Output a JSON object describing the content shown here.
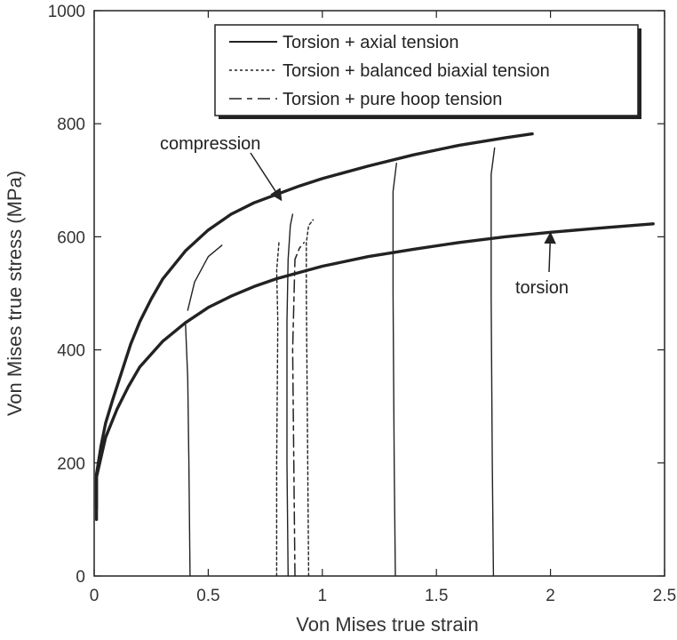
{
  "chart_data": {
    "type": "line",
    "title": "",
    "xlabel": "Von Mises true strain",
    "ylabel": "Von Mises true stress (MPa)",
    "xlim": [
      0,
      2.5
    ],
    "ylim": [
      0,
      1000
    ],
    "x_ticks": [
      0,
      0.5,
      1,
      1.5,
      2,
      2.5
    ],
    "x_tick_labels": [
      "0",
      "0.5",
      "1",
      "1.5",
      "2",
      "2.5"
    ],
    "y_ticks": [
      0,
      200,
      400,
      600,
      800,
      1000
    ],
    "y_tick_labels": [
      "0",
      "200",
      "400",
      "600",
      "800",
      "1000"
    ],
    "grid": false,
    "legend_position": "top-right",
    "legend": [
      {
        "label": "Torsion + axial tension",
        "style": "solid"
      },
      {
        "label": "Torsion + balanced biaxial tension",
        "style": "dotted"
      },
      {
        "label": "Torsion + pure hoop tension",
        "style": "dashed"
      }
    ],
    "annotations": [
      {
        "text": "compression",
        "x": 0.82,
        "y": 760,
        "arrow_to": {
          "x": 0.82,
          "y": 665
        }
      },
      {
        "text": "torsion",
        "x": 2.05,
        "y": 500,
        "arrow_to": {
          "x": 2.0,
          "y": 607
        }
      }
    ],
    "series": [
      {
        "kind": "main",
        "label_ref": "compression",
        "style": "thick",
        "points": [
          [
            0.01,
            120
          ],
          [
            0.01,
            180
          ],
          [
            0.03,
            230
          ],
          [
            0.05,
            270
          ],
          [
            0.08,
            310
          ],
          [
            0.12,
            360
          ],
          [
            0.16,
            410
          ],
          [
            0.2,
            450
          ],
          [
            0.25,
            490
          ],
          [
            0.3,
            525
          ],
          [
            0.4,
            575
          ],
          [
            0.5,
            612
          ],
          [
            0.6,
            640
          ],
          [
            0.7,
            660
          ],
          [
            0.8,
            675
          ],
          [
            0.9,
            690
          ],
          [
            1.0,
            703
          ],
          [
            1.2,
            725
          ],
          [
            1.4,
            745
          ],
          [
            1.6,
            762
          ],
          [
            1.8,
            775
          ],
          [
            1.92,
            782
          ]
        ]
      },
      {
        "kind": "main",
        "label_ref": "torsion",
        "style": "thick",
        "points": [
          [
            0.01,
            100
          ],
          [
            0.01,
            175
          ],
          [
            0.05,
            245
          ],
          [
            0.1,
            295
          ],
          [
            0.15,
            335
          ],
          [
            0.2,
            370
          ],
          [
            0.3,
            415
          ],
          [
            0.4,
            448
          ],
          [
            0.5,
            475
          ],
          [
            0.6,
            495
          ],
          [
            0.7,
            512
          ],
          [
            0.8,
            526
          ],
          [
            0.9,
            537
          ],
          [
            1.0,
            548
          ],
          [
            1.2,
            565
          ],
          [
            1.4,
            578
          ],
          [
            1.6,
            590
          ],
          [
            1.8,
            600
          ],
          [
            2.0,
            608
          ],
          [
            2.2,
            615
          ],
          [
            2.45,
            623
          ]
        ]
      },
      {
        "kind": "branch",
        "style": "solid",
        "points": [
          [
            0.4,
            450
          ],
          [
            0.41,
            350
          ],
          [
            0.415,
            200
          ],
          [
            0.42,
            0
          ]
        ]
      },
      {
        "kind": "branch",
        "style": "solid",
        "points": [
          [
            0.41,
            470
          ],
          [
            0.44,
            520
          ],
          [
            0.5,
            565
          ],
          [
            0.56,
            585
          ]
        ]
      },
      {
        "kind": "branch",
        "style": "solid",
        "points": [
          [
            0.85,
            0
          ],
          [
            0.845,
            200
          ],
          [
            0.845,
            450
          ],
          [
            0.85,
            560
          ],
          [
            0.86,
            620
          ],
          [
            0.87,
            640
          ]
        ]
      },
      {
        "kind": "branch",
        "style": "dotted",
        "points": [
          [
            0.8,
            0
          ],
          [
            0.8,
            200
          ],
          [
            0.805,
            450
          ],
          [
            0.8,
            540
          ],
          [
            0.81,
            590
          ]
        ]
      },
      {
        "kind": "branch",
        "style": "dotted",
        "points": [
          [
            0.94,
            0
          ],
          [
            0.935,
            250
          ],
          [
            0.93,
            500
          ],
          [
            0.93,
            590
          ],
          [
            0.94,
            620
          ],
          [
            0.96,
            630
          ]
        ]
      },
      {
        "kind": "branch",
        "style": "dashed",
        "points": [
          [
            0.88,
            0
          ],
          [
            0.875,
            200
          ],
          [
            0.87,
            400
          ],
          [
            0.88,
            560
          ],
          [
            0.9,
            580
          ],
          [
            0.92,
            590
          ]
        ]
      },
      {
        "kind": "branch",
        "style": "solid",
        "points": [
          [
            1.32,
            0
          ],
          [
            1.315,
            200
          ],
          [
            1.31,
            500
          ],
          [
            1.31,
            680
          ],
          [
            1.325,
            730
          ]
        ]
      },
      {
        "kind": "branch",
        "style": "solid",
        "points": [
          [
            1.75,
            0
          ],
          [
            1.745,
            200
          ],
          [
            1.74,
            500
          ],
          [
            1.74,
            710
          ],
          [
            1.755,
            757
          ]
        ]
      }
    ]
  }
}
